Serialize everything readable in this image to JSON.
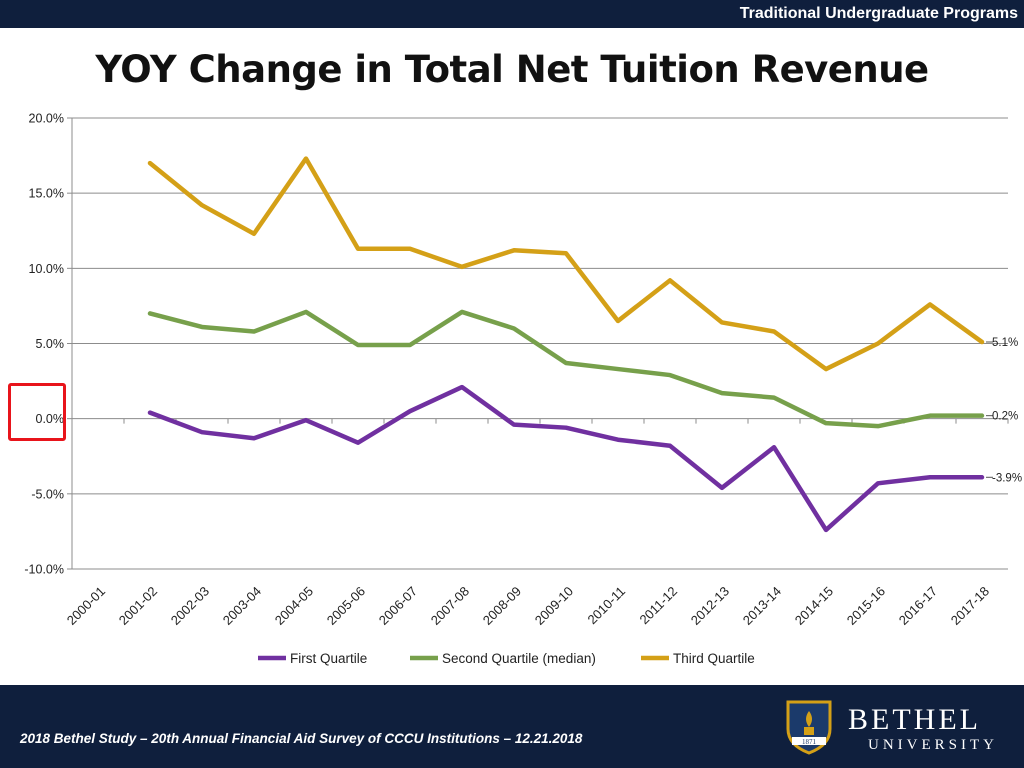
{
  "header": {
    "tag": "Traditional Undergraduate Programs"
  },
  "title": "YOY Change in Total Net Tuition Revenue",
  "footer": {
    "citation": "2018 Bethel Study – 20th Annual Financial Aid Survey of CCCU Institutions – 12.21.2018",
    "logo_name": "BETHEL",
    "logo_sub": "UNIVERSITY",
    "logo_year": "1871"
  },
  "colors": {
    "first": "#7030a0",
    "second": "#77a04b",
    "third": "#d4a017",
    "band": "#0f1f3d",
    "highlight": "#e8141b"
  },
  "chart_data": {
    "type": "line",
    "title": "YOY Change in Total Net Tuition Revenue",
    "xlabel": "",
    "ylabel": "",
    "ylim": [
      -10,
      20
    ],
    "yticks": [
      -10,
      -5,
      0,
      5,
      10,
      15,
      20
    ],
    "ytick_labels": [
      "-10.0%",
      "-5.0%",
      "0.0%",
      "5.0%",
      "10.0%",
      "15.0%",
      "20.0%"
    ],
    "grid": true,
    "legend": "bottom",
    "categories": [
      "2000-01",
      "2001-02",
      "2002-03",
      "2003-04",
      "2004-05",
      "2005-06",
      "2006-07",
      "2007-08",
      "2008-09",
      "2009-10",
      "2010-11",
      "2011-12",
      "2012-13",
      "2013-14",
      "2014-15",
      "2015-16",
      "2016-17",
      "2017-18"
    ],
    "series": [
      {
        "name": "First Quartile",
        "color": "#7030a0",
        "values": [
          null,
          0.4,
          -0.9,
          -1.3,
          -0.1,
          -1.6,
          0.5,
          2.1,
          -0.4,
          -0.6,
          -1.4,
          -1.8,
          -4.6,
          -1.9,
          -7.4,
          -4.3,
          -3.9,
          -3.9
        ],
        "end_label": "-3.9%"
      },
      {
        "name": "Second Quartile (median)",
        "color": "#77a04b",
        "values": [
          null,
          7.0,
          6.1,
          5.8,
          7.1,
          4.9,
          4.9,
          7.1,
          6.0,
          3.7,
          3.3,
          2.9,
          1.7,
          1.4,
          -0.3,
          -0.5,
          0.2,
          0.2
        ],
        "end_label": "0.2%"
      },
      {
        "name": "Third Quartile",
        "color": "#d4a017",
        "values": [
          null,
          17.0,
          14.2,
          12.3,
          17.3,
          11.3,
          11.3,
          10.1,
          11.2,
          11.0,
          6.5,
          9.2,
          6.4,
          5.8,
          3.3,
          5.0,
          7.6,
          5.1
        ],
        "end_label": "5.1%"
      }
    ]
  }
}
